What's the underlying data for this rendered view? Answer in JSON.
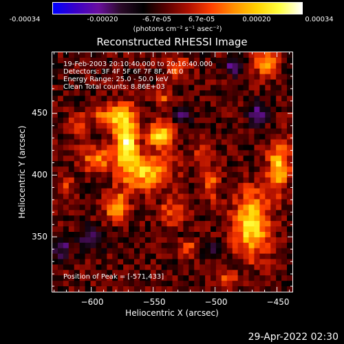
{
  "colorbar": {
    "colors": [
      "#0000ff",
      "#3a00c8",
      "#6a0fa0",
      "#2a0a28",
      "#000000",
      "#5a0000",
      "#b01000",
      "#ff4000",
      "#ff9000",
      "#ffd000",
      "#ffff40",
      "#ffffff"
    ],
    "ticks": [
      "-0.00034",
      "-0.00020",
      "-6.7e-05",
      "6.7e-05",
      "0.00020",
      "0.00034"
    ],
    "unit_label": "(photons cm⁻² s⁻¹ asec⁻²)"
  },
  "info": {
    "time_range": "19-Feb-2003 20:10:40.000 to 20:16:40.000",
    "detectors": "Detectors: 3F 4F 5F 6F 7F 8F, Att 0",
    "energy_range": "Energy Range: 25.0 - 50.0 keV",
    "method": "Clean    Total counts: 8.86E+03",
    "peak": "Position of Peak = [-571,433]"
  },
  "timestamp": "29-Apr-2022 02:30",
  "chart_data": {
    "type": "heatmap",
    "title": "Reconstructed RHESSI Image",
    "xlabel": "Heliocentric X (arcsec)",
    "ylabel": "Heliocentric Y (arcsec)",
    "xlim": [
      -632,
      -437
    ],
    "ylim": [
      305,
      500
    ],
    "xticks": [
      -600,
      -550,
      -500,
      -450
    ],
    "xtick_labels": [
      "−600",
      "−550",
      "−500",
      "−450"
    ],
    "yticks": [
      350,
      400,
      450
    ],
    "ytick_labels": [
      "350",
      "400",
      "450"
    ],
    "zlim": [
      -0.00034,
      0.00034
    ],
    "peak_position": [
      -571,
      433
    ],
    "grid_shape": [
      44,
      44
    ],
    "blobs": [
      {
        "x": -572,
        "y": 430,
        "sx": 6,
        "sy": 16,
        "amp": 0.00034
      },
      {
        "x": -585,
        "y": 447,
        "sx": 9,
        "sy": 7,
        "amp": 0.00022
      },
      {
        "x": -544,
        "y": 433,
        "sx": 7,
        "sy": 7,
        "amp": 0.0003
      },
      {
        "x": -556,
        "y": 403,
        "sx": 14,
        "sy": 10,
        "amp": 0.00026
      },
      {
        "x": -580,
        "y": 375,
        "sx": 7,
        "sy": 8,
        "amp": 0.00022
      },
      {
        "x": -596,
        "y": 413,
        "sx": 10,
        "sy": 7,
        "amp": 0.00018
      },
      {
        "x": -610,
        "y": 440,
        "sx": 5,
        "sy": 6,
        "amp": 0.00014
      },
      {
        "x": -534,
        "y": 370,
        "sx": 7,
        "sy": 7,
        "amp": 0.00016
      },
      {
        "x": -530,
        "y": 488,
        "sx": 6,
        "sy": 5,
        "amp": 0.00018
      },
      {
        "x": -503,
        "y": 393,
        "sx": 5,
        "sy": 9,
        "amp": 0.00015
      },
      {
        "x": -510,
        "y": 420,
        "sx": 5,
        "sy": 6,
        "amp": 0.00012
      },
      {
        "x": -470,
        "y": 360,
        "sx": 10,
        "sy": 18,
        "amp": 0.0003
      },
      {
        "x": -448,
        "y": 408,
        "sx": 6,
        "sy": 14,
        "amp": 0.00026
      },
      {
        "x": -458,
        "y": 490,
        "sx": 6,
        "sy": 7,
        "amp": 0.00024
      },
      {
        "x": -520,
        "y": 340,
        "sx": 6,
        "sy": 5,
        "amp": 0.00012
      },
      {
        "x": -490,
        "y": 315,
        "sx": 6,
        "sy": 5,
        "amp": 0.00012
      },
      {
        "x": -620,
        "y": 390,
        "sx": 5,
        "sy": 6,
        "amp": 0.0001
      },
      {
        "x": -540,
        "y": 462,
        "sx": 5,
        "sy": 5,
        "amp": 0.00012
      },
      {
        "x": -600,
        "y": 348,
        "sx": 7,
        "sy": 6,
        "amp": -0.00018
      },
      {
        "x": -465,
        "y": 450,
        "sx": 6,
        "sy": 6,
        "amp": -0.0002
      },
      {
        "x": -485,
        "y": 488,
        "sx": 5,
        "sy": 5,
        "amp": -0.00014
      },
      {
        "x": -525,
        "y": 450,
        "sx": 6,
        "sy": 5,
        "amp": -0.00012
      },
      {
        "x": -625,
        "y": 340,
        "sx": 6,
        "sy": 6,
        "amp": -0.00014
      },
      {
        "x": -505,
        "y": 340,
        "sx": 5,
        "sy": 5,
        "amp": -0.0001
      }
    ]
  }
}
